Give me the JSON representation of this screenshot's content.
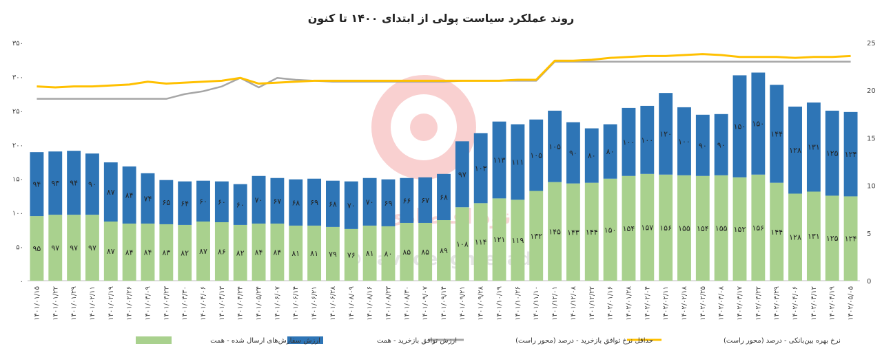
{
  "chart_data": {
    "type": "bar",
    "title": "روند عملکرد سیاست پولی از ابتدای ۱۴۰۰ تا کنون",
    "stacked": true,
    "categories": [
      "۱۴۰۱/۰۱/۱۵",
      "۱۴۰۱/۰۱/۲۲",
      "۱۴۰۱/۰۱/۲۹",
      "۱۴۰۱/۰۲/۱۱",
      "۱۴۰۱/۰۲/۱۹",
      "۱۴۰۱/۰۲/۲۶",
      "۱۴۰۱/۰۳/۰۹",
      "۱۴۰۱/۰۳/۲۳",
      "۱۴۰۱/۰۳/۳۰",
      "۱۴۰۱/۰۴/۰۶",
      "۱۴۰۱/۰۴/۱۳",
      "۱۴۰۱/۰۴/۲۴",
      "۱۴۰۱/۰۵/۲۴",
      "۱۴۰۱/۰۶/۰۷",
      "۱۴۰۱/۰۶/۱۴",
      "۱۴۰۱/۰۶/۲۱",
      "۱۴۰۱/۰۶/۲۸",
      "۱۴۰۱/۰۸/۰۹",
      "۱۴۰۱/۰۸/۱۶",
      "۱۴۰۱/۰۸/۲۳",
      "۱۴۰۱/۰۸/۳۰",
      "۱۴۰۱/۰۹/۰۷",
      "۱۴۰۱/۰۹/۱۴",
      "۱۴۰۱/۰۹/۲۱",
      "۱۴۰۱/۰۹/۲۸",
      "۱۴۰۱/۱۰/۱۹",
      "۱۴۰۱/۱۰/۲۶",
      "۱۴۰۱/۱۱/۱۰",
      "۱۴۰۱/۱۲/۰۱",
      "۱۴۰۱/۱۲/۰۸",
      "۱۴۰۱/۱۲/۲۲",
      "۱۴۰۲/۰۱/۱۶",
      "۱۴۰۲/۰۱/۲۸",
      "۱۴۰۲/۰۲/۰۴",
      "۱۴۰۲/۰۲/۱۱",
      "۱۴۰۲/۰۲/۱۸",
      "۱۴۰۲/۰۲/۲۵",
      "۱۴۰۲/۰۳/۰۸",
      "۱۴۰۲/۰۳/۱۷",
      "۱۴۰۲/۰۳/۲۲",
      "۱۴۰۲/۰۳/۲۹",
      "۱۴۰۲/۰۴/۰۶",
      "۱۴۰۲/۰۴/۱۲",
      "۱۴۰۲/۰۴/۱۹",
      "۱۴۰۲/۰۵/۰۵"
    ],
    "series": [
      {
        "name": "ارزش سفارش‌های ارسال شده - همت",
        "type": "bar",
        "axis": "left",
        "color": "#a9d18e",
        "values": [
          95,
          97,
          97,
          97,
          87,
          84,
          84,
          83,
          82,
          87,
          86,
          82,
          84,
          84,
          81,
          81,
          79,
          76,
          81,
          80,
          85,
          85,
          89,
          108,
          114,
          121,
          119,
          132,
          145,
          143,
          144,
          150,
          154,
          157,
          156,
          155,
          154,
          155,
          152,
          156,
          144,
          128,
          131,
          125,
          124
        ],
        "labels": [
          "۹۵",
          "۹۷",
          "۹۷",
          "۹۷",
          "۸۷",
          "۸۴",
          "۸۴",
          "۸۳",
          "۸۲",
          "۸۷",
          "۸۶",
          "۸۲",
          "۸۴",
          "۸۴",
          "۸۱",
          "۸۱",
          "۷۹",
          "۷۶",
          "۸۱",
          "۸۰",
          "۸۵",
          "۸۵",
          "۸۹",
          "۱۰۸",
          "۱۱۴",
          "۱۲۱",
          "۱۱۹",
          "۱۳۲",
          "۱۴۵",
          "۱۴۳",
          "۱۴۴",
          "۱۵۰",
          "۱۵۴",
          "۱۵۷",
          "۱۵۶",
          "۱۵۵",
          "۱۵۴",
          "۱۵۵",
          "۱۵۲",
          "۱۵۶",
          "۱۴۴",
          "۱۲۸",
          "۱۳۱",
          "۱۲۵",
          "۱۲۴"
        ]
      },
      {
        "name": "ارزش  توافق بازخرید - همت",
        "type": "bar",
        "axis": "left",
        "color": "#2e75b6",
        "values": [
          94,
          93,
          94,
          90,
          87,
          84,
          74,
          65,
          64,
          60,
          60,
          60,
          70,
          67,
          68,
          69,
          68,
          70,
          70,
          69,
          66,
          67,
          68,
          97,
          103,
          113,
          111,
          105,
          105,
          90,
          80,
          80,
          100,
          100,
          120,
          100,
          90,
          90,
          150,
          150,
          144,
          128,
          131,
          125,
          124
        ],
        "labels": [
          "۹۴",
          "۹۳",
          "۹۴",
          "۹۰",
          "۸۷",
          "۸۴",
          "۷۴",
          "۶۵",
          "۶۴",
          "۶۰",
          "۶۰",
          "۶۰",
          "۷۰",
          "۶۷",
          "۶۸",
          "۶۹",
          "۶۸",
          "۷۰",
          "۷۰",
          "۶۹",
          "۶۶",
          "۶۷",
          "۶۸",
          "۹۷",
          "۱۰۳",
          "۱۱۳",
          "۱۱۱",
          "۱۰۵",
          "۱۰۵",
          "۹۰",
          "۸۰",
          "۸۰",
          "۱۰۰",
          "۱۰۰",
          "۱۲۰",
          "۱۰۰",
          "۹۰",
          "۹۰",
          "۱۵۰",
          "۱۵۰",
          "۱۴۴",
          "۱۲۸",
          "۱۳۱",
          "۱۲۵",
          "۱۲۴"
        ]
      },
      {
        "name": "حداقل نرخ توافق بازخرید - درصد  (محور راست)",
        "type": "line",
        "axis": "right",
        "color": "#a6a6a6",
        "values": [
          19.1,
          19.1,
          19.1,
          19.1,
          19.1,
          19.1,
          19.1,
          19.1,
          19.6,
          19.9,
          20.4,
          21.3,
          20.3,
          21.3,
          21.1,
          21.0,
          20.9,
          20.9,
          20.9,
          20.9,
          20.9,
          20.9,
          20.9,
          21.0,
          21.0,
          21.0,
          21.0,
          21.0,
          23.0,
          23.0,
          23.0,
          23.0,
          23.0,
          23.0,
          23.0,
          23.0,
          23.0,
          23.0,
          23.0,
          23.0,
          23.0,
          23.0,
          23.0,
          23.0,
          23.0
        ]
      },
      {
        "name": "نرخ بهره بین‌بانکی - درصد (محور راست)",
        "type": "line",
        "axis": "right",
        "color": "#ffc000",
        "values": [
          20.4,
          20.3,
          20.4,
          20.4,
          20.5,
          20.6,
          20.9,
          20.7,
          20.8,
          20.9,
          21.0,
          21.3,
          20.7,
          20.8,
          20.9,
          21.0,
          21.0,
          21.0,
          21.0,
          21.0,
          21.0,
          21.0,
          21.0,
          21.0,
          21.0,
          21.0,
          21.1,
          21.1,
          23.1,
          23.1,
          23.2,
          23.4,
          23.5,
          23.6,
          23.6,
          23.7,
          23.8,
          23.7,
          23.5,
          23.5,
          23.5,
          23.4,
          23.5,
          23.5,
          23.6
        ]
      }
    ],
    "y_left": {
      "ylim": [
        0,
        350
      ],
      "ticks": [
        0,
        50,
        100,
        150,
        200,
        250,
        300,
        350
      ],
      "tick_labels": [
        "۰",
        "۵۰",
        "۱۰۰",
        "۱۵۰",
        "۲۰۰",
        "۲۵۰",
        "۳۰۰",
        "۳۵۰"
      ]
    },
    "y_right": {
      "ylim": [
        0,
        25
      ],
      "ticks": [
        0,
        5,
        10,
        15,
        20,
        25
      ],
      "tick_labels": [
        "0",
        "5",
        "10",
        "15",
        "20",
        "25"
      ]
    },
    "legend_position": "bottom",
    "grid": false
  },
  "watermark": {
    "handle": "@NavadeEghtesadi",
    "brand": "نود اقتصادی"
  }
}
